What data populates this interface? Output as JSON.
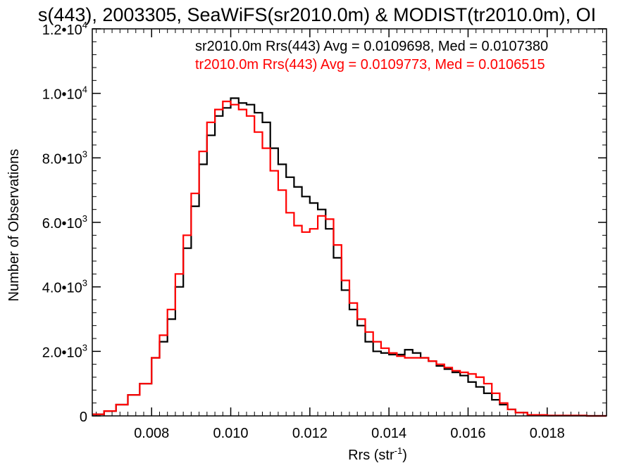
{
  "chart_data": {
    "type": "line",
    "title": "s(443), 2003305, SeaWiFS(sr2010.0m) & MODIST(tr2010.0m), OI",
    "xlabel": "Rrs (str",
    "xlabel_sup": "-1",
    "xlabel_tail": ")",
    "ylabel": "Number of Observations",
    "xlim": [
      0.0065,
      0.0195
    ],
    "ylim": [
      0,
      12000
    ],
    "grid": false,
    "legend_placement": "top-right",
    "x_ticks": [
      {
        "value": 0.008,
        "label": "0.008"
      },
      {
        "value": 0.01,
        "label": "0.010"
      },
      {
        "value": 0.012,
        "label": "0.012"
      },
      {
        "value": 0.014,
        "label": "0.014"
      },
      {
        "value": 0.016,
        "label": "0.016"
      },
      {
        "value": 0.018,
        "label": "0.018"
      }
    ],
    "y_ticks": [
      {
        "value": 0,
        "label": "0",
        "exp": ""
      },
      {
        "value": 2000,
        "label": "2.0•10",
        "exp": "3"
      },
      {
        "value": 4000,
        "label": "4.0•10",
        "exp": "3"
      },
      {
        "value": 6000,
        "label": "6.0•10",
        "exp": "3"
      },
      {
        "value": 8000,
        "label": "8.0•10",
        "exp": "3"
      },
      {
        "value": 10000,
        "label": "1.0•10",
        "exp": "4"
      },
      {
        "value": 12000,
        "label": "1.2•10",
        "exp": "4"
      }
    ],
    "series": [
      {
        "name": "sr2010.0m Rrs(443) Avg = 0.0109698, Med = 0.0107380",
        "color": "#000000",
        "x": [
          0.0065,
          0.0068,
          0.0071,
          0.0074,
          0.0077,
          0.008,
          0.0082,
          0.0084,
          0.0086,
          0.0088,
          0.009,
          0.0092,
          0.0094,
          0.0096,
          0.0098,
          0.01,
          0.0102,
          0.0104,
          0.0106,
          0.0108,
          0.011,
          0.0112,
          0.0114,
          0.0116,
          0.0118,
          0.012,
          0.0122,
          0.0124,
          0.0126,
          0.0128,
          0.013,
          0.0132,
          0.0134,
          0.0136,
          0.0138,
          0.014,
          0.0142,
          0.0144,
          0.0146,
          0.0148,
          0.015,
          0.0152,
          0.0154,
          0.0156,
          0.0158,
          0.016,
          0.0162,
          0.0164,
          0.0166,
          0.0168,
          0.017,
          0.0172,
          0.0175,
          0.018,
          0.019,
          0.0195
        ],
        "y": [
          50,
          150,
          350,
          650,
          1000,
          1800,
          2300,
          3000,
          4000,
          5200,
          6500,
          7800,
          8700,
          9300,
          9550,
          9850,
          9700,
          9650,
          9400,
          9100,
          8300,
          7800,
          7400,
          7100,
          6800,
          6600,
          6400,
          5800,
          4900,
          3900,
          3300,
          2800,
          2300,
          2000,
          1950,
          1900,
          1900,
          2050,
          1950,
          1800,
          1700,
          1550,
          1450,
          1350,
          1250,
          1050,
          900,
          700,
          500,
          350,
          200,
          100,
          30,
          10,
          0,
          0
        ]
      },
      {
        "name": "tr2010.0m Rrs(443) Avg = 0.0109773, Med = 0.0106515",
        "color": "#ff0000",
        "x": [
          0.0065,
          0.0068,
          0.0071,
          0.0074,
          0.0077,
          0.008,
          0.0082,
          0.0084,
          0.0086,
          0.0088,
          0.009,
          0.0092,
          0.0094,
          0.0096,
          0.0098,
          0.01,
          0.0102,
          0.0104,
          0.0106,
          0.0108,
          0.011,
          0.0112,
          0.0114,
          0.0116,
          0.0118,
          0.012,
          0.0122,
          0.0124,
          0.0126,
          0.0128,
          0.013,
          0.0132,
          0.0134,
          0.0136,
          0.0138,
          0.014,
          0.0142,
          0.0144,
          0.0146,
          0.0148,
          0.015,
          0.0152,
          0.0154,
          0.0156,
          0.0158,
          0.016,
          0.0162,
          0.0164,
          0.0166,
          0.0168,
          0.017,
          0.0172,
          0.0175,
          0.018,
          0.019,
          0.0195
        ],
        "y": [
          50,
          150,
          350,
          650,
          1000,
          1800,
          2500,
          3300,
          4400,
          5600,
          6900,
          8200,
          9100,
          9500,
          9750,
          9650,
          9500,
          9300,
          8800,
          8300,
          7600,
          7000,
          6300,
          5900,
          5700,
          5800,
          6200,
          6100,
          5300,
          4200,
          3500,
          3000,
          2600,
          2300,
          2100,
          1950,
          1850,
          1800,
          1800,
          1800,
          1700,
          1600,
          1500,
          1400,
          1350,
          1300,
          1200,
          1000,
          700,
          400,
          200,
          100,
          30,
          10,
          0,
          0
        ]
      }
    ]
  }
}
